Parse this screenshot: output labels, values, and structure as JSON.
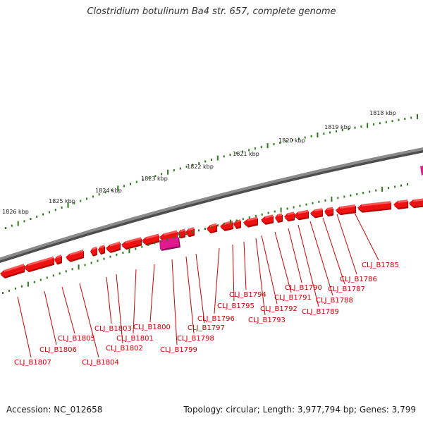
{
  "title": "Clostridium botulinum Ba4 str. 657, complete genome",
  "footer": {
    "accession": "Accession: NC_012658",
    "summary": "Topology: circular; Length: 3,977,794 bp; Genes: 3,799"
  },
  "colors": {
    "gene": "#ee1111",
    "gene_top": "#ff6a6a",
    "gene_shadow": "#b30000",
    "special_gene": "#e0198f",
    "backbone": "#777777",
    "ticks": "#2a7a1a",
    "label": "#cc0000"
  },
  "scale_labels": [
    "1818 kbp",
    "1819 kbp",
    "1820 kbp",
    "1821 kbp",
    "1822 kbp",
    "1823 kbp",
    "1824 kbp",
    "1825 kbp",
    "1826 kbp"
  ],
  "gene_labels": [
    "CLJ_B1785",
    "CLJ_B1786",
    "CLJ_B1787",
    "CLJ_B1788",
    "CLJ_B1789",
    "CLJ_B1790",
    "CLJ_B1791",
    "CLJ_B1792",
    "CLJ_B1793",
    "CLJ_B1794",
    "CLJ_B1795",
    "CLJ_B1796",
    "CLJ_B1797",
    "CLJ_B1798",
    "CLJ_B1799",
    "CLJ_B1800",
    "CLJ_B1801",
    "CLJ_B1802",
    "CLJ_B1803",
    "CLJ_B1804",
    "CLJ_B1805",
    "CLJ_B1806",
    "CLJ_B1807"
  ]
}
